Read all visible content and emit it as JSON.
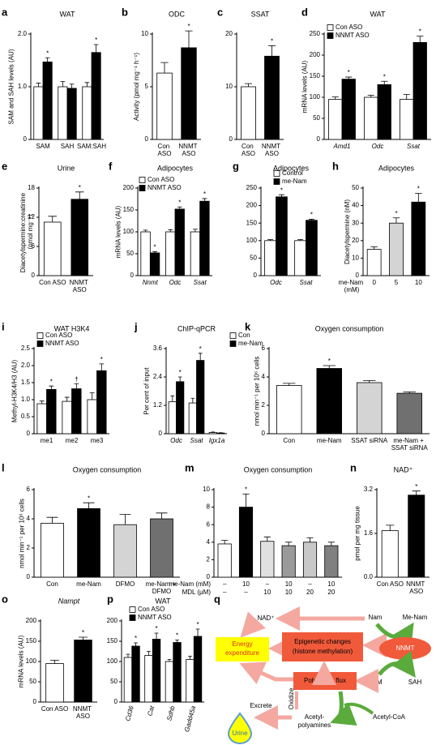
{
  "chart_data": [
    {
      "type": "bar",
      "letter": "a",
      "title": "WAT",
      "ylabel": "SAM and SAH levels (AU)",
      "categories": [
        "SAM",
        "SAH",
        "SAM:SAH"
      ],
      "series": [
        {
          "color": "#ffffff",
          "values": [
            1.0,
            1.0,
            1.0
          ],
          "errors": [
            0.07,
            0.1,
            0.08
          ],
          "labels": [
            null,
            null,
            null
          ]
        },
        {
          "color": "#000000",
          "values": [
            1.47,
            0.97,
            1.65
          ],
          "errors": [
            0.08,
            0.08,
            0.15
          ],
          "labels": [
            "*",
            null,
            "*"
          ]
        }
      ],
      "ylim": [
        0,
        2
      ],
      "yticks": [
        0,
        {
          "value": 1,
          "label": "1.0"
        },
        {
          "value": 2,
          "label": "2.0"
        }
      ]
    },
    {
      "type": "bar",
      "letter": "b",
      "title": "ODC",
      "ylabel": "Activity (pmol mg⁻¹ h⁻¹)",
      "categories": [
        "Con ASO",
        "NNMT ASO"
      ],
      "series": [
        {
          "colors": [
            "#ffffff",
            "#000000"
          ],
          "values": [
            6.3,
            8.7
          ],
          "errors": [
            1.0,
            1.6
          ],
          "labels": [
            null,
            "*"
          ]
        }
      ],
      "ylim": [
        0,
        10
      ],
      "yticks": [
        0,
        5,
        10
      ]
    },
    {
      "type": "bar",
      "letter": "c",
      "title": "SSAT",
      "categories": [
        "Con ASO",
        "NNMT ASO"
      ],
      "series": [
        {
          "colors": [
            "#ffffff",
            "#000000"
          ],
          "values": [
            10,
            15.8
          ],
          "errors": [
            0.6,
            2.0
          ],
          "labels": [
            null,
            "*"
          ]
        }
      ],
      "ylim": [
        0,
        20
      ],
      "yticks": [
        0,
        10,
        20
      ]
    },
    {
      "type": "bar",
      "letter": "d",
      "title": "WAT",
      "ylabel": "mRNA levels (AU)",
      "categories": [
        "Amd1",
        "Odc",
        "Ssat"
      ],
      "category_style": "italic",
      "series": [
        {
          "name": "Con ASO",
          "color": "#ffffff",
          "values": [
            95,
            100,
            95
          ],
          "errors": [
            6,
            5,
            12
          ],
          "labels": [
            null,
            null,
            null
          ]
        },
        {
          "name": "NNMT ASO",
          "color": "#000000",
          "values": [
            143,
            130,
            230
          ],
          "errors": [
            5,
            8,
            15
          ],
          "labels": [
            "*",
            "*",
            "*"
          ]
        }
      ],
      "ylim": [
        0,
        250
      ],
      "yticks": [
        0,
        50,
        100,
        150,
        200,
        250
      ]
    },
    {
      "type": "bar",
      "letter": "e",
      "title": "Urine",
      "ylabel": "Diacetylspermine:creatinine (nmol mg⁻¹)",
      "categories": [
        "Con ASO",
        "NNMT ASO"
      ],
      "series": [
        {
          "colors": [
            "#ffffff",
            "#000000"
          ],
          "values": [
            11,
            15.7
          ],
          "errors": [
            1.2,
            1.5
          ],
          "labels": [
            null,
            "*"
          ]
        }
      ],
      "ylim": [
        0,
        18
      ],
      "yticks": [
        0,
        6,
        12,
        18
      ]
    },
    {
      "type": "bar",
      "letter": "f",
      "title": "Adipocytes",
      "ylabel": "mRNA levels (AU)",
      "categories": [
        "Nnmt",
        "Odc",
        "Ssat"
      ],
      "category_style": "italic",
      "series": [
        {
          "name": "Con ASO",
          "color": "#ffffff",
          "values": [
            100,
            100,
            100
          ],
          "errors": [
            4,
            5,
            6
          ],
          "labels": [
            null,
            null,
            null
          ]
        },
        {
          "name": "NNMT ASO",
          "color": "#000000",
          "values": [
            52,
            152,
            170
          ],
          "errors": [
            3,
            5,
            6
          ],
          "labels": [
            "*",
            "*",
            "*"
          ]
        }
      ],
      "ylim": [
        0,
        200
      ],
      "yticks": [
        0,
        50,
        100,
        150,
        200
      ]
    },
    {
      "type": "bar",
      "letter": "g",
      "title": "Adipocytes",
      "categories": [
        "Odc",
        "Ssat"
      ],
      "category_style": "italic",
      "series": [
        {
          "name": "Control",
          "color": "#ffffff",
          "values": [
            100,
            100
          ],
          "errors": [
            3,
            3
          ],
          "labels": [
            null,
            null
          ]
        },
        {
          "name": "me-Nam",
          "color": "#000000",
          "values": [
            225,
            158
          ],
          "errors": [
            6,
            3
          ],
          "labels": [
            "*",
            "*"
          ]
        }
      ],
      "ylim": [
        0,
        250
      ],
      "yticks": [
        0,
        50,
        100,
        150,
        200,
        250
      ]
    },
    {
      "type": "bar",
      "letter": "h",
      "title": "Adipocytes",
      "ylabel": "Diacetylspermine (nM)",
      "xlabel": "me-Nam (mM)",
      "categories": [
        "0",
        "5",
        "10"
      ],
      "series": [
        {
          "colors": [
            "#ffffff",
            "#d4d4d4",
            "#000000"
          ],
          "values": [
            15,
            30,
            42
          ],
          "errors": [
            1.5,
            3,
            5
          ],
          "labels": [
            null,
            "*",
            "*"
          ]
        }
      ],
      "ylim": [
        0,
        50
      ],
      "yticks": [
        0,
        10,
        20,
        30,
        40,
        50
      ]
    },
    {
      "type": "bar",
      "letter": "i",
      "title": "WAT H3K4",
      "ylabel": "Methyl-H3K4/H3 (AU)",
      "categories": [
        "me1",
        "me2",
        "me3"
      ],
      "series": [
        {
          "name": "Con ASO",
          "color": "#ffffff",
          "values": [
            0.88,
            0.95,
            1.0
          ],
          "errors": [
            0.08,
            0.12,
            0.2
          ],
          "labels": [
            null,
            null,
            null
          ]
        },
        {
          "name": "NNMT ASO",
          "color": "#000000",
          "values": [
            1.3,
            1.32,
            1.85
          ],
          "errors": [
            0.1,
            0.15,
            0.2
          ],
          "labels": [
            "*",
            "†",
            "*"
          ]
        }
      ],
      "ylim": [
        0,
        2.5
      ],
      "yticks": [
        0,
        0.5,
        {
          "value": 1,
          "label": "1.0"
        },
        1.5,
        {
          "value": 2,
          "label": "2.0"
        },
        2.5
      ]
    },
    {
      "type": "bar",
      "letter": "j",
      "title": "ChIP-qPCR",
      "ylabel": "Per cent of input",
      "categories": [
        "Odc",
        "Ssat",
        "Igx1a"
      ],
      "category_style": "italic",
      "series": [
        {
          "name": "Con",
          "color": "#ffffff",
          "values": [
            1.35,
            1.3,
            0.05
          ],
          "errors": [
            0.25,
            0.2,
            0.02
          ],
          "labels": [
            null,
            null,
            null
          ]
        },
        {
          "name": "me-Nam",
          "color": "#000000",
          "values": [
            2.2,
            3.1,
            0.03
          ],
          "errors": [
            0.2,
            0.3,
            0.01
          ],
          "labels": [
            "*",
            "*",
            null
          ]
        }
      ],
      "ylim": [
        0,
        3.6
      ],
      "yticks": [
        0,
        1.2,
        2.4,
        3.6
      ]
    },
    {
      "type": "bar",
      "letter": "k",
      "title": "Oxygen consumption",
      "ylabel": "nmol min⁻¹ per 10⁶ cells",
      "categories": [
        "Con",
        "me-Nam",
        "SSAT siRNA",
        "me-Nam + SSAT siRNA"
      ],
      "series": [
        {
          "colors": [
            "#ffffff",
            "#000000",
            "#d4d4d4",
            "#707070"
          ],
          "values": [
            3.4,
            4.6,
            3.6,
            2.85
          ],
          "errors": [
            0.15,
            0.2,
            0.15,
            0.1
          ],
          "labels": [
            null,
            "*",
            null,
            null
          ]
        }
      ],
      "ylim": [
        0,
        6
      ],
      "yticks": [
        0,
        2,
        4,
        6
      ]
    },
    {
      "type": "bar",
      "letter": "l",
      "title": "Oxygen consumption",
      "ylabel": "nmol min⁻¹ per 10⁶ cells",
      "categories": [
        "Con",
        "me-Nam",
        "DFMO",
        "me-Nam + DFMO"
      ],
      "series": [
        {
          "colors": [
            "#ffffff",
            "#000000",
            "#d4d4d4",
            "#707070"
          ],
          "values": [
            3.7,
            4.7,
            3.6,
            4.0
          ],
          "errors": [
            0.4,
            0.4,
            0.7,
            0.4
          ],
          "labels": [
            null,
            "*",
            null,
            null
          ]
        }
      ],
      "ylim": [
        0,
        6
      ],
      "yticks": [
        0,
        2,
        4,
        6
      ]
    },
    {
      "type": "bar",
      "letter": "m",
      "title": "Oxygen consumption",
      "table": [
        {
          "label": "me-Nam (mM)",
          "cells": [
            "–",
            "10",
            "–",
            "10",
            "–",
            "10"
          ]
        },
        {
          "label": "MDL (μM)",
          "cells": [
            "–",
            "–",
            "10",
            "10",
            "20",
            "20"
          ]
        }
      ],
      "series": [
        {
          "colors": [
            "#ffffff",
            "#000000",
            "#e0e0e0",
            "#9a9a9a",
            "#c8c8c8",
            "#808080"
          ],
          "values": [
            3.8,
            8.0,
            4.1,
            3.6,
            4.0,
            3.6
          ],
          "errors": [
            0.4,
            1.5,
            0.5,
            0.4,
            0.5,
            0.4
          ],
          "labels": [
            null,
            "*",
            null,
            null,
            null,
            null
          ]
        }
      ],
      "ylim": [
        0,
        10
      ],
      "yticks": [
        0,
        2,
        4,
        6,
        8,
        10
      ]
    },
    {
      "type": "bar",
      "letter": "n",
      "title": "NAD⁺",
      "ylabel": "pmol per mg tissue",
      "categories": [
        "Con ASO",
        "NNMT ASO"
      ],
      "series": [
        {
          "colors": [
            "#ffffff",
            "#000000"
          ],
          "values": [
            1.7,
            3.0
          ],
          "errors": [
            0.2,
            0.15
          ],
          "labels": [
            null,
            "*"
          ]
        }
      ],
      "ylim": [
        0,
        3.2
      ],
      "yticks": [
        {
          "value": 0,
          "label": "0.0"
        },
        1.6,
        3.2
      ]
    },
    {
      "type": "bar",
      "letter": "o",
      "title": "Nampt",
      "title_style": "italic",
      "ylabel": "mRNA levels (AU)",
      "categories": [
        "Con ASO",
        "NNMT ASO"
      ],
      "series": [
        {
          "colors": [
            "#ffffff",
            "#000000"
          ],
          "values": [
            95,
            153
          ],
          "errors": [
            8,
            7
          ],
          "labels": [
            null,
            "*"
          ]
        }
      ],
      "ylim": [
        0,
        200
      ],
      "yticks": [
        0,
        50,
        100,
        150,
        200
      ]
    },
    {
      "type": "bar",
      "letter": "p",
      "title": "WAT",
      "categories": [
        "Cd36",
        "Cat",
        "Sdhb",
        "Gadd45a"
      ],
      "category_style": "italic",
      "rotate_categories": true,
      "series": [
        {
          "name": "Con ASO",
          "color": "#ffffff",
          "values": [
            110,
            115,
            100,
            105
          ],
          "errors": [
            8,
            10,
            5,
            8
          ],
          "labels": [
            null,
            null,
            null,
            null
          ]
        },
        {
          "name": "NNMT ASO",
          "color": "#000000",
          "values": [
            138,
            155,
            147,
            162
          ],
          "errors": [
            8,
            15,
            6,
            18
          ],
          "labels": [
            "*",
            "*",
            "*",
            "*"
          ]
        }
      ],
      "ylim": [
        0,
        200
      ],
      "yticks": [
        0,
        50,
        100,
        150,
        200
      ]
    }
  ],
  "diagram": {
    "letter": "q",
    "nad": "NAD⁺",
    "nam": "Nam",
    "menam": "Me-Nam",
    "nnmt": "NNMT",
    "energy": [
      "Energy",
      "expenditure"
    ],
    "epigenetic": [
      "Epigenetic changes",
      "(histone methylation)"
    ],
    "polyamine": "Polyamine flux",
    "sam": "SAM",
    "sah": "SAH",
    "oxidize": "Oxidize",
    "excrete": "Excrete",
    "urine": "Urine",
    "acetylpolyamines": [
      "Acetyl-",
      "polyamines"
    ],
    "acetylcoa": "Acetyl-CoA"
  }
}
